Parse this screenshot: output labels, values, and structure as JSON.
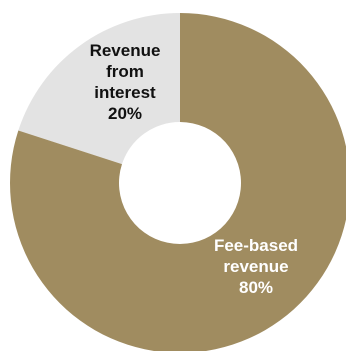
{
  "chart_data": {
    "type": "pie",
    "donut": true,
    "title": "",
    "slices": [
      {
        "label_lines": [
          "Revenue",
          "from",
          "interest"
        ],
        "value": 20,
        "value_label": "20%",
        "color": "#e3e3e3",
        "text_color": "#111111"
      },
      {
        "label_lines": [
          "Fee-based",
          "revenue"
        ],
        "value": 80,
        "value_label": "80%",
        "color": "#a08c60",
        "text_color": "#ffffff"
      }
    ],
    "start_angle_deg": 0,
    "direction": "counterclockwise"
  }
}
